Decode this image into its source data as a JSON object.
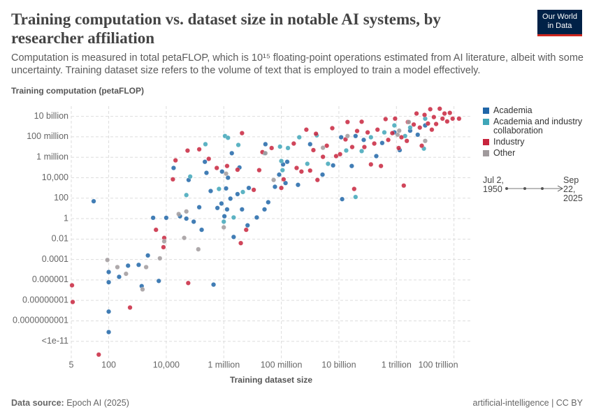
{
  "chart_data": {
    "type": "scatter",
    "title": "Training computation vs. dataset size in notable AI systems, by researcher affiliation",
    "subtitle": "Computation is measured in total petaFLOP, which is 10¹⁵ floating-point operations estimated from AI literature, albeit with some uncertainty. Training dataset size refers to the volume of text that is employed to train a model effectively.",
    "logo": "Our World in Data",
    "y_label": "Training computation (petaFLOP)",
    "x_label": "Training dataset size",
    "source_label": "Data source:",
    "source": "Epoch AI (2025)",
    "footer_right": "artificial-intelligence | CC BY",
    "time_range": [
      "Jul 2, 1950",
      "Sep 22, 2025"
    ],
    "x_log": true,
    "y_log": true,
    "grid": true,
    "xlim": [
      5,
      200000000000000.0
    ],
    "ylim": [
      1e-14,
      100000000000.0
    ],
    "xticks": [
      5,
      100,
      {
        "value": 10000,
        "label": "10,000"
      },
      {
        "value": 1000000.0,
        "label": "1 million"
      },
      {
        "value": 100000000.0,
        "label": "100 million"
      },
      {
        "value": 10000000000.0,
        "label": "10 billion"
      },
      {
        "value": 1000000000000.0,
        "label": "1 trillion"
      },
      {
        "value": 100000000000000.0,
        "label": "100 trillion"
      }
    ],
    "yticks": [
      {
        "value": 10000000000.0,
        "label": "10 billion"
      },
      {
        "value": 100000000.0,
        "label": "100 million"
      },
      {
        "value": 1000000.0,
        "label": "1 million"
      },
      {
        "value": 10000,
        "label": "10,000"
      },
      100,
      1,
      0.01,
      0.0001,
      {
        "value": 1e-06,
        "label": "0.000001"
      },
      {
        "value": 1e-08,
        "label": "0.00000001"
      },
      {
        "value": 1e-10,
        "label": "0.0000000001"
      },
      {
        "value": 1e-12,
        "label": "<1e-11"
      }
    ],
    "series": [
      {
        "name": "Academia",
        "color": "#2066a8",
        "x": [
          30,
          100,
          100,
          100,
          100,
          230,
          470,
          1100,
          1400,
          2300,
          3500,
          5500,
          10000,
          18000,
          30000,
          50000,
          60000,
          90000,
          140000,
          170000,
          220000,
          250000,
          350000,
          440000,
          600000,
          830000,
          870000,
          1050000,
          1200000,
          1300000,
          1400000,
          1700000,
          1900000,
          2200000,
          3000000,
          3500000,
          4300000,
          6700000,
          7400000,
          14000000,
          26000000,
          28000000,
          35000000,
          60000000,
          84000000,
          115000000,
          140000000,
          160000000,
          380000000,
          1000000000.0,
          2700000000.0,
          6300000000.0,
          12000000000.0,
          13000000000.0,
          28000000000.0,
          38000000000.0,
          73000000000.0,
          200000000000.0,
          320000000000.0,
          850000000000.0,
          1300000000000.0,
          3000000000000.0,
          5500000000000.0,
          10000000000000.0
        ],
        "y": [
          50,
          6e-06,
          6e-07,
          8e-10,
          8e-12,
          2e-06,
          2.5e-05,
          3e-05,
          2.5e-07,
          0.00025,
          1.2,
          8e-07,
          1.2,
          90000,
          1.7,
          1,
          6000,
          0.5,
          13,
          0.08,
          360000,
          30000,
          500,
          3.5e-07,
          11,
          30,
          40000,
          1.7,
          900,
          8,
          10000,
          90,
          2500000,
          0.016,
          250,
          100000,
          8,
          0.22,
          1000,
          1.3,
          8,
          19000000,
          40,
          1300,
          20000,
          200000,
          3000,
          360000,
          2000,
          19000000,
          20000,
          160000,
          90000000,
          80,
          140000,
          120000000,
          50000000,
          1300000,
          25000000,
          270000000,
          5000000,
          400000000,
          160000000,
          1300000000.0
        ]
      },
      {
        "name": "Academia and industry collaboration",
        "color": "#3fa6b8",
        "x": [
          50000,
          68000,
          230000,
          680000,
          1000000,
          1100000,
          1400000,
          2200000,
          3200000,
          4600000,
          26000000,
          90000000,
          100000000.0,
          110000000,
          170000000,
          420000000,
          800000000.0,
          1700000000.0,
          4200000000.0,
          18000000000.0,
          38000000000.0,
          62000000000.0,
          130000000000.0,
          380000000000.0,
          850000000000.0,
          2000000000000.0,
          3000000000000.0,
          9000000000000.0,
          10000000000000.0
        ],
        "y": [
          200,
          13000,
          19000000,
          800,
          0.5,
          120000000,
          80000000,
          1.3,
          16000000,
          400,
          2500000,
          11000000,
          430000,
          55000,
          8000000,
          90000000,
          230000,
          140000000,
          230000,
          4600000,
          130,
          4000000,
          90000000,
          270000000,
          1300000000.0,
          120000000,
          800000000.0,
          7000000,
          6000000000.0
        ]
      },
      {
        "name": "Industry",
        "color": "#c8243d",
        "x": [
          5.3,
          5.6,
          45,
          550,
          4400,
          8000,
          8500,
          17000,
          21000,
          55000,
          58000,
          140000,
          300000,
          570000,
          1300000,
          3000000,
          3900000,
          4300000,
          6000000,
          11000000,
          17000000,
          22000000,
          46000000,
          100000000.0,
          120000000,
          270000000,
          340000000,
          500000000.0,
          740000000,
          1000000000.0,
          1300000000.0,
          1600000000.0,
          1800000000.0,
          2800000000.0,
          3800000000.0,
          5900000000.0,
          8000000000.0,
          11000000000.0,
          17000000000.0,
          20000000000.0,
          29000000000.0,
          34000000000.0,
          43000000000.0,
          62000000000.0,
          77000000000.0,
          100000000000.0,
          130000000000.0,
          170000000000.0,
          220000000000.0,
          290000000000.0,
          420000000000.0,
          520000000000.0,
          720000000000.0,
          900000000000.0,
          1200000000000.0,
          1500000000000.0,
          1800000000000.0,
          2300000000000.0,
          2500000000000.0,
          4000000000000.0,
          5000000000000.0,
          6500000000000.0,
          7600000000000.0,
          9500000000000.0,
          12500000000000.0,
          15000000000000.0,
          17000000000000.0,
          20000000000000.0,
          24000000000000.0,
          32000000000000.0,
          40000000000000.0,
          47000000000000.0,
          58000000000000.0,
          72000000000000.0,
          90000000000000.0,
          150000000000000.0
        ],
        "y": [
          3e-07,
          7e-09,
          5e-14,
          2e-09,
          0.08,
          0.0016,
          0.013,
          7000,
          500000,
          4500000,
          5e-07,
          6000000,
          700000,
          90000,
          140000,
          60000,
          0.004,
          230000000,
          0.08,
          650,
          55000,
          3200000,
          8000000,
          1000,
          7000,
          22000000,
          90000,
          40000,
          500000000.0,
          50000,
          5000000,
          200000000.0,
          6000,
          1100000,
          13500000,
          700000000.0,
          1300000,
          2000000,
          56000000,
          2800000000.0,
          10000000,
          800,
          370000000,
          3000000000.0,
          10000000,
          270000000,
          200000,
          22000000,
          500000000.0,
          140000,
          5400000000.0,
          50000000,
          230000000,
          6000000000.0,
          8000000,
          90000000,
          1700,
          40000000,
          2800000000.0,
          1600000000.0,
          19000000000.0,
          800000000.0,
          13500000,
          14000000000.0,
          2000000000.0,
          50000000000.0,
          500000000.0,
          8500000000.0,
          1800000000.0,
          56000000000.0,
          6000000000.0,
          19000000000.0,
          3200000000.0,
          22000000000.0,
          6000000000.0,
          6000000000.0
        ]
      },
      {
        "name": "Other",
        "color": "#a09a9c",
        "x": [
          90,
          200,
          400,
          2000,
          1500,
          6000,
          8500,
          27000,
          50000,
          42000,
          130000,
          1000000,
          1200000,
          28000000,
          54000000,
          2800000000.0,
          20000000000.0,
          1100000000000.0,
          1250000000000.0,
          2700000000000.0,
          10000000000000.0
        ],
        "y": [
          9e-05,
          1.8e-05,
          4e-06,
          1.8e-05,
          1.2e-07,
          0.00013,
          0.006,
          2.8,
          5,
          0.013,
          0.001,
          0.14,
          25000,
          2500000,
          6000,
          8500000,
          120000000,
          160000000,
          400000000.0,
          2800000000.0,
          40000000
        ]
      }
    ]
  }
}
